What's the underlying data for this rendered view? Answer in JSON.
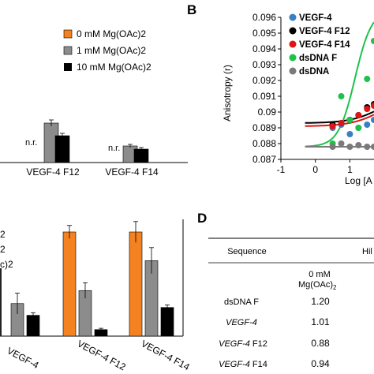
{
  "panels": {
    "B": "B",
    "D": "D"
  },
  "chart_data": [
    {
      "panel": "A (partial)",
      "type": "bar",
      "categories": [
        "VEGF-4 F12",
        "VEGF-4 F14"
      ],
      "category_annotations": [
        "n.r.",
        "n.r."
      ],
      "series": [
        {
          "name": "0 mM Mg(OAc)2",
          "color": "#f58220",
          "values": [
            null,
            null
          ]
        },
        {
          "name": "1 mM Mg(OAc)2",
          "color": "#8c8c8c",
          "values": [
            0.5,
            0.21
          ]
        },
        {
          "name": "10 mM Mg(OAc)2",
          "color": "#000000",
          "values": [
            0.34,
            0.17
          ]
        }
      ],
      "errors": [
        [
          null,
          null
        ],
        [
          0.04,
          0.02
        ],
        [
          0.03,
          0.02
        ]
      ],
      "legend_position": "top-right"
    },
    {
      "panel": "B",
      "type": "scatter",
      "xlabel": "Log [A",
      "ylabel": "Anisotropy (r)",
      "xlim": [
        -1,
        1.7
      ],
      "ylim": [
        0.087,
        0.096
      ],
      "xticks": [
        "-1",
        "0",
        "1"
      ],
      "yticks": [
        "0.087",
        "0.088",
        "0.089",
        "0.09",
        "0.091",
        "0.092",
        "0.093",
        "0.094",
        "0.095",
        "0.096"
      ],
      "series": [
        {
          "name": "VEGF-4",
          "color": "#3a7fc4",
          "x": [
            0.5,
            0.75,
            1.0,
            1.25,
            1.5,
            1.7
          ],
          "y": [
            0.089,
            0.0892,
            0.0886,
            0.089,
            0.0892,
            0.0895
          ]
        },
        {
          "name": "VEGF-4 F12",
          "color": "#000000",
          "x": [
            0.5,
            0.75,
            1.0,
            1.25,
            1.5,
            1.7
          ],
          "y": [
            0.0892,
            0.0893,
            0.0895,
            0.0898,
            0.0903,
            0.0905
          ]
        },
        {
          "name": "VEGF-4 F14",
          "color": "#e01414",
          "x": [
            0.5,
            0.75,
            1.0,
            1.25,
            1.5,
            1.7
          ],
          "y": [
            0.0891,
            0.0893,
            0.0895,
            0.0898,
            0.0902,
            0.0904
          ]
        },
        {
          "name": "dsDNA F",
          "color": "#1ec24a",
          "x": [
            0.5,
            0.75,
            1.0,
            1.25,
            1.5,
            1.7
          ],
          "y": [
            0.088,
            0.091,
            0.0895,
            0.089,
            0.0921,
            0.0945
          ]
        },
        {
          "name": "dsDNA",
          "color": "#7a7a7a",
          "x": [
            0.5,
            0.75,
            1.0,
            1.25,
            1.5,
            1.7
          ],
          "y": [
            0.0878,
            0.088,
            0.0878,
            0.0879,
            0.0878,
            0.0878
          ]
        }
      ],
      "fits": [
        {
          "name": "VEGF-4 F12",
          "color": "#000000",
          "bottom": 0.0893,
          "top": 0.0912,
          "logK": 1.9,
          "hill": 1.0
        },
        {
          "name": "VEGF-4 F14",
          "color": "#e01414",
          "bottom": 0.0891,
          "top": 0.091,
          "logK": 1.9,
          "hill": 1.0
        },
        {
          "name": "dsDNA F",
          "color": "#1ec24a",
          "bottom": 0.0878,
          "top": 0.0965,
          "logK": 1.15,
          "hill": 1.8
        },
        {
          "name": "dsDNA",
          "color": "#7a7a7a",
          "bottom": 0.0878,
          "top": 0.0878,
          "logK": 1.0,
          "hill": 1.0
        }
      ],
      "legend_position": "top-left"
    },
    {
      "panel": "C (partial)",
      "type": "bar",
      "categories": [
        "",
        "VEGF-4",
        "VEGF-4 F12",
        "VEGF-4 F14"
      ],
      "legend_fragments": [
        "2",
        "2",
        "c)2"
      ],
      "series": [
        {
          "name": "0 mM",
          "color": "#f58220",
          "values": [
            null,
            null,
            0.8,
            0.8
          ]
        },
        {
          "name": "1 mM",
          "color": "#8c8c8c",
          "values": [
            null,
            0.25,
            0.35,
            0.58
          ]
        },
        {
          "name": "10 mM",
          "color": "#000000",
          "values": [
            null,
            0.16,
            0.05,
            0.22
          ]
        }
      ],
      "errors": [
        [
          null,
          null,
          0.05,
          0.08
        ],
        [
          null,
          0.08,
          0.06,
          0.1
        ],
        [
          null,
          0.02,
          0.01,
          0.02
        ]
      ]
    },
    {
      "panel": "D",
      "type": "table",
      "columns": [
        "Sequence",
        "Hil"
      ],
      "subheader": {
        "line1": "0 mM",
        "line2_prefix": "Mg(OAc)",
        "line2_sub": "2"
      },
      "rows": [
        {
          "sequence": "dsDNA F",
          "italic": false,
          "suffix": "",
          "value": "1.20"
        },
        {
          "sequence": "VEGF-4",
          "italic": true,
          "suffix": "",
          "value": "1.01"
        },
        {
          "sequence": "VEGF-4",
          "italic": true,
          "suffix": " F12",
          "value": "0.88"
        },
        {
          "sequence": "VEGF-4",
          "italic": true,
          "suffix": " F14",
          "value": "0.94"
        }
      ]
    }
  ]
}
